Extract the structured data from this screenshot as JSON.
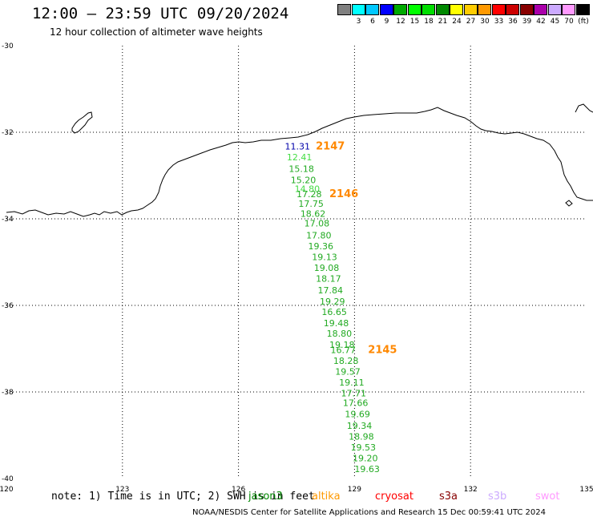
{
  "header": {
    "title": "12:00 – 23:59 UTC 09/20/2024",
    "subtitle": "12 hour collection of altimeter wave heights"
  },
  "legend": {
    "unit": "(ft)",
    "items": [
      {
        "label": "",
        "color": "#808080"
      },
      {
        "label": "3",
        "color": "#00ffff"
      },
      {
        "label": "6",
        "color": "#00c8ff"
      },
      {
        "label": "9",
        "color": "#0000ff"
      },
      {
        "label": "12",
        "color": "#00aa00"
      },
      {
        "label": "15",
        "color": "#00ff00"
      },
      {
        "label": "18",
        "color": "#00dd00"
      },
      {
        "label": "21",
        "color": "#008800"
      },
      {
        "label": "24",
        "color": "#ffff00"
      },
      {
        "label": "27",
        "color": "#ffcc00"
      },
      {
        "label": "30",
        "color": "#ff9900"
      },
      {
        "label": "33",
        "color": "#ff0000"
      },
      {
        "label": "36",
        "color": "#cc0000"
      },
      {
        "label": "39",
        "color": "#880000"
      },
      {
        "label": "42",
        "color": "#aa00aa"
      },
      {
        "label": "45",
        "color": "#ccaaff"
      },
      {
        "label": "70",
        "color": "#ff99ff"
      },
      {
        "label": "",
        "color": "#000000"
      }
    ]
  },
  "map": {
    "lon_range": [
      120,
      135
    ],
    "lat_range": [
      -40,
      -30
    ],
    "lon_labels": [
      "120",
      "123",
      "126",
      "129",
      "132",
      "135"
    ],
    "lat_labels": [
      "-30",
      "-32",
      "-34",
      "-36",
      "-38",
      "-40"
    ],
    "pass_labels": [
      {
        "text": "2147",
        "color": "#ff8800",
        "lon": 128.0,
        "lat": -32.4
      },
      {
        "text": "2146",
        "color": "#ff8800",
        "lon": 128.35,
        "lat": -33.5
      },
      {
        "text": "2145",
        "color": "#ff8800",
        "lon": 129.35,
        "lat": -37.1
      }
    ],
    "wave_heights": [
      {
        "value": "11.31",
        "color": "#0000aa",
        "lon": 127.2,
        "lat": -32.4
      },
      {
        "value": "12.41",
        "color": "#44dd44",
        "lon": 127.25,
        "lat": -32.65
      },
      {
        "value": "15.18",
        "color": "#22aa22",
        "lon": 127.3,
        "lat": -32.92
      },
      {
        "value": "15.20",
        "color": "#22aa22",
        "lon": 127.35,
        "lat": -33.18
      },
      {
        "value": "14.80",
        "color": "#44dd44",
        "lon": 127.45,
        "lat": -33.38
      },
      {
        "value": "17.28",
        "color": "#22aa22",
        "lon": 127.5,
        "lat": -33.5
      },
      {
        "value": "17.75",
        "color": "#22aa22",
        "lon": 127.55,
        "lat": -33.72
      },
      {
        "value": "18.62",
        "color": "#22aa22",
        "lon": 127.6,
        "lat": -33.95
      },
      {
        "value": "17.08",
        "color": "#22aa22",
        "lon": 127.7,
        "lat": -34.18
      },
      {
        "value": "17.80",
        "color": "#22aa22",
        "lon": 127.75,
        "lat": -34.45
      },
      {
        "value": "19.36",
        "color": "#22aa22",
        "lon": 127.8,
        "lat": -34.7
      },
      {
        "value": "19.13",
        "color": "#22aa22",
        "lon": 127.9,
        "lat": -34.95
      },
      {
        "value": "19.08",
        "color": "#22aa22",
        "lon": 127.95,
        "lat": -35.2
      },
      {
        "value": "18.17",
        "color": "#22aa22",
        "lon": 128.0,
        "lat": -35.45
      },
      {
        "value": "17.84",
        "color": "#22aa22",
        "lon": 128.05,
        "lat": -35.72
      },
      {
        "value": "19.29",
        "color": "#22aa22",
        "lon": 128.1,
        "lat": -35.98
      },
      {
        "value": "16.65",
        "color": "#22aa22",
        "lon": 128.15,
        "lat": -36.22
      },
      {
        "value": "19.48",
        "color": "#22aa22",
        "lon": 128.2,
        "lat": -36.48
      },
      {
        "value": "18.80",
        "color": "#22aa22",
        "lon": 128.28,
        "lat": -36.72
      },
      {
        "value": "19.18",
        "color": "#22aa22",
        "lon": 128.35,
        "lat": -36.98
      },
      {
        "value": "16.77",
        "color": "#22aa22",
        "lon": 128.38,
        "lat": -37.1
      },
      {
        "value": "18.28",
        "color": "#22aa22",
        "lon": 128.45,
        "lat": -37.35
      },
      {
        "value": "19.57",
        "color": "#22aa22",
        "lon": 128.5,
        "lat": -37.6
      },
      {
        "value": "19.11",
        "color": "#22aa22",
        "lon": 128.6,
        "lat": -37.85
      },
      {
        "value": "17.71",
        "color": "#22aa22",
        "lon": 128.65,
        "lat": -38.1
      },
      {
        "value": "17.66",
        "color": "#22aa22",
        "lon": 128.7,
        "lat": -38.32
      },
      {
        "value": "19.69",
        "color": "#22aa22",
        "lon": 128.75,
        "lat": -38.58
      },
      {
        "value": "19.34",
        "color": "#22aa22",
        "lon": 128.8,
        "lat": -38.85
      },
      {
        "value": "18.98",
        "color": "#22aa22",
        "lon": 128.85,
        "lat": -39.1
      },
      {
        "value": "19.53",
        "color": "#22aa22",
        "lon": 128.9,
        "lat": -39.35
      },
      {
        "value": "19.20",
        "color": "#22aa22",
        "lon": 128.95,
        "lat": -39.6
      },
      {
        "value": "19.63",
        "color": "#22aa22",
        "lon": 129.0,
        "lat": -39.85
      }
    ]
  },
  "footer": {
    "note": "note:  1) Time is in UTC; 2) SWH is in feet",
    "missions": [
      {
        "name": "jason3",
        "color": "#008800"
      },
      {
        "name": "altika",
        "color": "#ff9900"
      },
      {
        "name": "cryosat",
        "color": "#ff0000"
      },
      {
        "name": "s3a",
        "color": "#880000"
      },
      {
        "name": "s3b",
        "color": "#ccaaff"
      },
      {
        "name": "swot",
        "color": "#ff99ff"
      }
    ],
    "credit": "NOAA/NESDIS Center for Satellite Applications and Research     15 Dec 00:59:41 UTC 2024"
  }
}
